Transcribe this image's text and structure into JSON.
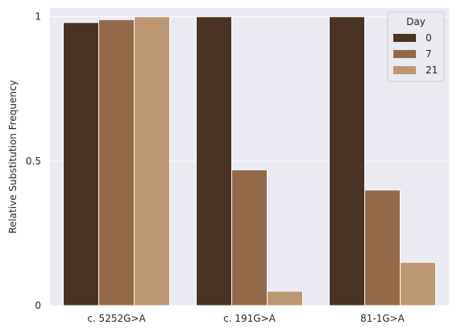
{
  "chart_data": {
    "type": "bar",
    "categories": [
      "c. 5252G>A",
      "c. 191G>A",
      "81-1G>A"
    ],
    "series": [
      {
        "name": "0",
        "values": [
          0.98,
          1.0,
          1.0
        ],
        "color": "#4a3322"
      },
      {
        "name": "7",
        "values": [
          0.99,
          0.47,
          0.4
        ],
        "color": "#94694a"
      },
      {
        "name": "21",
        "values": [
          1.0,
          0.05,
          0.15
        ],
        "color": "#bd9773"
      }
    ],
    "title": "",
    "xlabel": "",
    "ylabel": "Relative Substitution Frequency",
    "ylim": [
      0,
      1.03
    ],
    "yticks": [
      0,
      0.5,
      1
    ],
    "ytick_labels": [
      "0",
      "0.5",
      "1"
    ],
    "grid": true,
    "legend": {
      "title": "Day",
      "placement": "top-right"
    },
    "background_color": "#eaeaf2"
  }
}
